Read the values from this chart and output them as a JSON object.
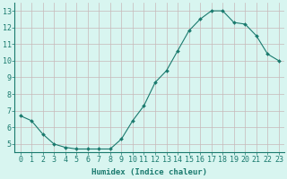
{
  "x": [
    0,
    1,
    2,
    3,
    4,
    5,
    6,
    7,
    8,
    9,
    10,
    11,
    12,
    13,
    14,
    15,
    16,
    17,
    18,
    19,
    20,
    21,
    22,
    23
  ],
  "y": [
    6.7,
    6.4,
    5.6,
    5.0,
    4.8,
    4.7,
    4.7,
    4.7,
    4.7,
    5.3,
    6.4,
    7.3,
    8.7,
    9.4,
    10.6,
    11.8,
    12.5,
    13.0,
    13.0,
    12.3,
    12.2,
    11.5,
    10.4,
    10.0
  ],
  "line_color": "#1a7a6e",
  "marker": "D",
  "marker_size": 2,
  "bg_color": "#d8f5f0",
  "grid_color": "#c8b8b8",
  "xlabel": "Humidex (Indice chaleur)",
  "xlabel_fontsize": 6.5,
  "tick_fontsize": 6,
  "xlim": [
    -0.5,
    23.5
  ],
  "ylim": [
    4.5,
    13.5
  ],
  "yticks": [
    5,
    6,
    7,
    8,
    9,
    10,
    11,
    12,
    13
  ],
  "xticks": [
    0,
    1,
    2,
    3,
    4,
    5,
    6,
    7,
    8,
    9,
    10,
    11,
    12,
    13,
    14,
    15,
    16,
    17,
    18,
    19,
    20,
    21,
    22,
    23
  ]
}
